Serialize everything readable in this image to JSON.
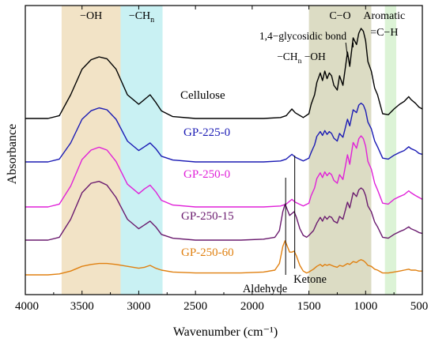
{
  "chart_data": {
    "type": "line",
    "xlabel": "Wavenumber (cm⁻¹)",
    "ylabel": "Absorbance",
    "xlim": [
      4000,
      500
    ],
    "x_reversed": true,
    "xticks": [
      4000,
      3500,
      3000,
      2500,
      2000,
      1500,
      1000,
      500
    ],
    "grid": false,
    "legend": "inline labels",
    "bands": [
      {
        "label": "−OH",
        "from": 3680,
        "to": 3160,
        "color": "#f2e3c6"
      },
      {
        "label": "−CH",
        "subscript": "n",
        "from": 3160,
        "to": 2790,
        "color": "#c9f1f3"
      },
      {
        "label": "C−O",
        "from": 1500,
        "to": 950,
        "color": "#dcdcc4"
      },
      {
        "label": "Aromatic",
        "label2": "=C−H",
        "from": 830,
        "to": 730,
        "color": "#dcf3d6"
      }
    ],
    "annotations": [
      {
        "text": "1,4−glycosidic bond",
        "x": 1120
      },
      {
        "text": "−CH",
        "subscript": "n",
        "text_after": "−OH",
        "x": 1390
      },
      {
        "text": "Aldehyde",
        "x": 1705
      },
      {
        "text": "Ketone",
        "x": 1625
      }
    ],
    "series": [
      {
        "name": "Cellulose",
        "color": "#000000",
        "x": [
          4000,
          3800,
          3700,
          3600,
          3500,
          3420,
          3350,
          3280,
          3200,
          3100,
          3000,
          2950,
          2900,
          2850,
          2800,
          2700,
          2500,
          2300,
          2100,
          1900,
          1750,
          1700,
          1650,
          1620,
          1550,
          1500,
          1480,
          1450,
          1430,
          1400,
          1380,
          1360,
          1340,
          1320,
          1300,
          1280,
          1250,
          1230,
          1200,
          1160,
          1140,
          1110,
          1080,
          1060,
          1040,
          1020,
          1000,
          980,
          950,
          920,
          895,
          850,
          800,
          750,
          700,
          660,
          620,
          600,
          560,
          530,
          500
        ],
        "y": [
          0.0,
          0.0,
          0.03,
          0.25,
          0.52,
          0.62,
          0.65,
          0.63,
          0.52,
          0.25,
          0.15,
          0.2,
          0.25,
          0.17,
          0.08,
          0.02,
          0.0,
          0.0,
          0.0,
          0.0,
          0.01,
          0.03,
          0.1,
          0.06,
          0.01,
          0.05,
          0.15,
          0.25,
          0.38,
          0.48,
          0.4,
          0.5,
          0.42,
          0.48,
          0.45,
          0.35,
          0.3,
          0.45,
          0.35,
          0.7,
          0.55,
          0.85,
          0.78,
          0.9,
          0.95,
          0.92,
          0.82,
          0.6,
          0.5,
          0.32,
          0.25,
          0.05,
          0.04,
          0.1,
          0.15,
          0.18,
          0.23,
          0.2,
          0.16,
          0.12,
          0.1
        ]
      },
      {
        "name": "GP-225-0",
        "color": "#1a1ab4",
        "x": [
          4000,
          3800,
          3700,
          3600,
          3500,
          3420,
          3350,
          3280,
          3200,
          3100,
          3000,
          2950,
          2900,
          2850,
          2800,
          2700,
          2500,
          2300,
          2100,
          1900,
          1750,
          1700,
          1650,
          1620,
          1550,
          1500,
          1480,
          1450,
          1430,
          1400,
          1380,
          1360,
          1340,
          1320,
          1300,
          1280,
          1250,
          1230,
          1200,
          1160,
          1140,
          1110,
          1080,
          1060,
          1040,
          1020,
          1000,
          980,
          950,
          920,
          895,
          850,
          800,
          750,
          700,
          660,
          620,
          600,
          560,
          530,
          500
        ],
        "y": [
          0.0,
          0.0,
          0.03,
          0.2,
          0.45,
          0.54,
          0.57,
          0.55,
          0.45,
          0.22,
          0.12,
          0.16,
          0.2,
          0.14,
          0.06,
          0.02,
          0.0,
          0.0,
          0.0,
          0.0,
          0.01,
          0.03,
          0.08,
          0.05,
          0.01,
          0.04,
          0.1,
          0.18,
          0.27,
          0.32,
          0.28,
          0.33,
          0.29,
          0.32,
          0.3,
          0.25,
          0.22,
          0.3,
          0.26,
          0.45,
          0.38,
          0.55,
          0.52,
          0.6,
          0.62,
          0.6,
          0.54,
          0.42,
          0.35,
          0.22,
          0.16,
          0.04,
          0.03,
          0.07,
          0.1,
          0.12,
          0.16,
          0.14,
          0.12,
          0.09,
          0.08
        ]
      },
      {
        "name": "GP-250-0",
        "color": "#e020d8",
        "x": [
          4000,
          3800,
          3700,
          3600,
          3500,
          3420,
          3350,
          3280,
          3200,
          3100,
          3000,
          2950,
          2900,
          2850,
          2800,
          2700,
          2500,
          2300,
          2100,
          1900,
          1750,
          1700,
          1650,
          1620,
          1550,
          1500,
          1480,
          1450,
          1430,
          1400,
          1380,
          1360,
          1340,
          1320,
          1300,
          1280,
          1250,
          1230,
          1200,
          1160,
          1140,
          1110,
          1080,
          1060,
          1040,
          1020,
          1000,
          980,
          950,
          920,
          895,
          850,
          800,
          750,
          700,
          660,
          620,
          600,
          560,
          530,
          500
        ],
        "y": [
          0.0,
          0.0,
          0.03,
          0.22,
          0.5,
          0.6,
          0.63,
          0.6,
          0.48,
          0.24,
          0.14,
          0.19,
          0.23,
          0.16,
          0.07,
          0.02,
          0.0,
          0.0,
          0.0,
          0.0,
          0.01,
          0.03,
          0.08,
          0.05,
          0.01,
          0.04,
          0.12,
          0.2,
          0.3,
          0.36,
          0.31,
          0.37,
          0.33,
          0.36,
          0.34,
          0.28,
          0.25,
          0.34,
          0.29,
          0.55,
          0.45,
          0.68,
          0.62,
          0.72,
          0.75,
          0.72,
          0.64,
          0.48,
          0.4,
          0.25,
          0.18,
          0.04,
          0.03,
          0.08,
          0.11,
          0.13,
          0.17,
          0.15,
          0.12,
          0.1,
          0.08
        ]
      },
      {
        "name": "GP-250-15",
        "color": "#6a1a6e",
        "x": [
          4000,
          3800,
          3700,
          3600,
          3500,
          3420,
          3350,
          3280,
          3200,
          3100,
          3000,
          2950,
          2900,
          2850,
          2800,
          2700,
          2500,
          2300,
          2100,
          1900,
          1800,
          1760,
          1730,
          1710,
          1690,
          1670,
          1650,
          1630,
          1610,
          1580,
          1550,
          1520,
          1500,
          1460,
          1430,
          1400,
          1380,
          1360,
          1340,
          1320,
          1300,
          1280,
          1250,
          1230,
          1200,
          1160,
          1140,
          1110,
          1080,
          1060,
          1040,
          1020,
          1000,
          980,
          950,
          920,
          895,
          850,
          800,
          750,
          700,
          660,
          620,
          600,
          560,
          530,
          500
        ],
        "y": [
          0.0,
          0.0,
          0.03,
          0.22,
          0.5,
          0.6,
          0.62,
          0.58,
          0.45,
          0.22,
          0.12,
          0.16,
          0.2,
          0.14,
          0.06,
          0.02,
          0.0,
          0.0,
          0.0,
          0.01,
          0.03,
          0.1,
          0.3,
          0.38,
          0.32,
          0.26,
          0.28,
          0.3,
          0.24,
          0.12,
          0.05,
          0.03,
          0.05,
          0.1,
          0.18,
          0.24,
          0.2,
          0.25,
          0.22,
          0.25,
          0.24,
          0.2,
          0.18,
          0.25,
          0.22,
          0.4,
          0.34,
          0.5,
          0.46,
          0.53,
          0.55,
          0.53,
          0.47,
          0.36,
          0.3,
          0.19,
          0.14,
          0.03,
          0.02,
          0.06,
          0.09,
          0.11,
          0.14,
          0.12,
          0.1,
          0.08,
          0.07
        ]
      },
      {
        "name": "GP-250-60",
        "color": "#e08010",
        "x": [
          4000,
          3800,
          3700,
          3600,
          3500,
          3420,
          3350,
          3280,
          3200,
          3100,
          3000,
          2950,
          2900,
          2850,
          2800,
          2700,
          2500,
          2300,
          2100,
          1900,
          1800,
          1760,
          1730,
          1710,
          1690,
          1670,
          1650,
          1630,
          1610,
          1580,
          1550,
          1520,
          1500,
          1460,
          1430,
          1400,
          1380,
          1360,
          1340,
          1320,
          1300,
          1280,
          1250,
          1230,
          1200,
          1160,
          1140,
          1110,
          1080,
          1060,
          1040,
          1020,
          1000,
          980,
          950,
          920,
          895,
          850,
          800,
          750,
          700,
          660,
          620,
          600,
          560,
          530,
          500
        ],
        "y": [
          0.0,
          0.0,
          0.01,
          0.04,
          0.09,
          0.11,
          0.12,
          0.12,
          0.11,
          0.09,
          0.07,
          0.08,
          0.1,
          0.07,
          0.05,
          0.03,
          0.02,
          0.02,
          0.02,
          0.03,
          0.05,
          0.12,
          0.3,
          0.36,
          0.3,
          0.24,
          0.24,
          0.25,
          0.2,
          0.1,
          0.04,
          0.02,
          0.03,
          0.06,
          0.09,
          0.11,
          0.09,
          0.11,
          0.1,
          0.11,
          0.1,
          0.09,
          0.08,
          0.1,
          0.09,
          0.12,
          0.11,
          0.14,
          0.13,
          0.15,
          0.16,
          0.15,
          0.13,
          0.1,
          0.09,
          0.06,
          0.05,
          0.02,
          0.02,
          0.03,
          0.04,
          0.05,
          0.06,
          0.05,
          0.05,
          0.04,
          0.04
        ]
      }
    ]
  }
}
